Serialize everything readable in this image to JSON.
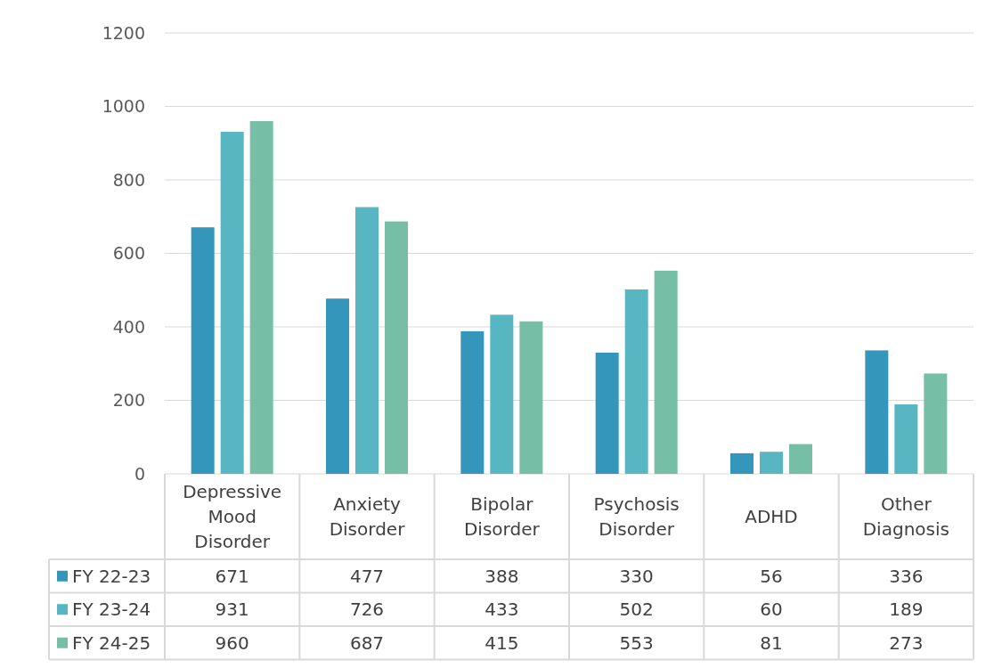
{
  "chart_data": {
    "type": "bar",
    "categories": [
      "Depressive Mood Disorder",
      "Anxiety Disorder",
      "Bipolar Disorder",
      "Psychosis Disorder",
      "ADHD",
      "Other Diagnosis"
    ],
    "series": [
      {
        "name": "FY 22-23",
        "color": "#3596bc",
        "values": [
          671,
          477,
          388,
          330,
          56,
          336
        ]
      },
      {
        "name": "FY 23-24",
        "color": "#57b6c1",
        "values": [
          931,
          726,
          433,
          502,
          60,
          189
        ]
      },
      {
        "name": "FY 24-25",
        "color": "#76bea6",
        "values": [
          960,
          687,
          415,
          553,
          81,
          273
        ]
      }
    ],
    "ylim": [
      0,
      1200
    ],
    "yticks": [
      0,
      200,
      400,
      600,
      800,
      1000,
      1200
    ],
    "grid": "y",
    "data_labels": true,
    "legend": "bottom"
  }
}
